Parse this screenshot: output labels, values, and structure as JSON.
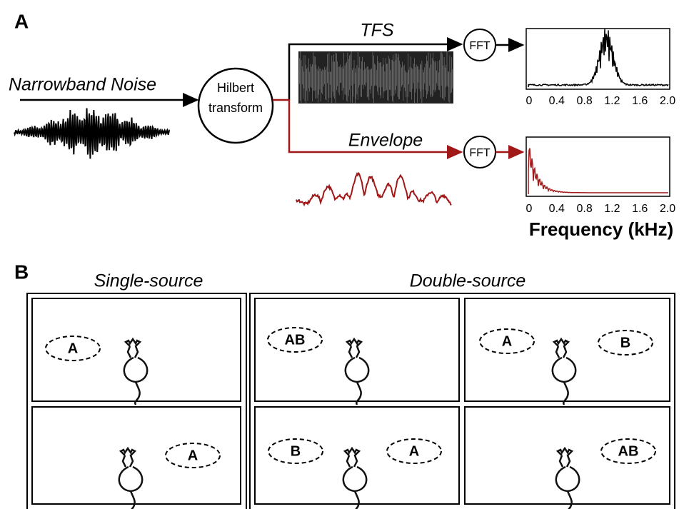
{
  "panel_a": {
    "label": "A",
    "input_label": "Narrowband Noise",
    "hilbert_lines": [
      "Hilbert",
      "transform"
    ],
    "tfs_label": "TFS",
    "envelope_label": "Envelope",
    "fft_top": "FFT",
    "fft_bottom": "FFT",
    "top_spectrum_ticks": [
      "0",
      "0.4",
      "0.8",
      "1.2",
      "1.6",
      "2.0"
    ],
    "bottom_spectrum_ticks": [
      "0",
      "0.4",
      "0.8",
      "1.2",
      "1.6",
      "2.0"
    ],
    "x_axis_label": "Frequency (kHz)"
  },
  "panel_b": {
    "label": "B",
    "single_title": "Single-source",
    "double_title": "Double-source",
    "cells": [
      {
        "sources": [
          "A"
        ]
      },
      {
        "sources": [
          "A"
        ]
      },
      {
        "sources": [
          "AB"
        ]
      },
      {
        "sources": [
          "A",
          "B"
        ]
      },
      {
        "sources": [
          "B",
          "A"
        ]
      },
      {
        "sources": [
          "AB"
        ]
      }
    ]
  }
}
